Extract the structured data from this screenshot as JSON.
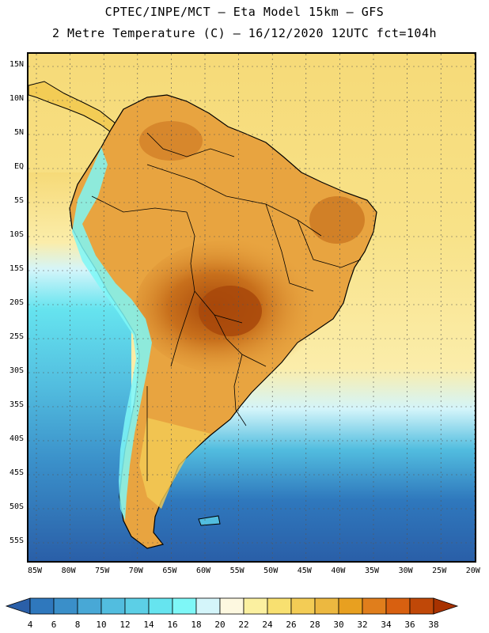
{
  "header": {
    "line1": "CPTEC/INPE/MCT —  Eta Model 15km — GFS",
    "line2": "2 Metre Temperature (C) — 16/12/2020 12UTC fct=104h"
  },
  "axes": {
    "latitude_labels": [
      "15N",
      "10N",
      "5N",
      "EQ",
      "5S",
      "10S",
      "15S",
      "20S",
      "25S",
      "30S",
      "35S",
      "40S",
      "45S",
      "50S",
      "55S"
    ],
    "longitude_labels": [
      "85W",
      "80W",
      "75W",
      "70W",
      "65W",
      "60W",
      "55W",
      "50W",
      "45W",
      "40W",
      "35W",
      "30W",
      "25W",
      "20W"
    ]
  },
  "legend": {
    "units": "C",
    "labels": [
      "4",
      "6",
      "8",
      "10",
      "12",
      "14",
      "16",
      "18",
      "20",
      "22",
      "24",
      "26",
      "28",
      "30",
      "32",
      "34",
      "36",
      "38"
    ],
    "colors": [
      "#2a5fa8",
      "#2f78bd",
      "#3a8fc9",
      "#48a8d6",
      "#52bddf",
      "#5ccfe6",
      "#66e4ef",
      "#7ef7f7",
      "#d4f5fa",
      "#fdf8e0",
      "#fbf0a0",
      "#f8e070",
      "#f3cc55",
      "#ecb840",
      "#e8a020",
      "#e07e1c",
      "#d86010",
      "#c04808",
      "#a83200"
    ]
  },
  "map": {
    "ocean_colors": {
      "tropical": "#f6da78",
      "subtropical": "#fbedaa",
      "mid": "#d4f5fa",
      "cool": "#52bddf",
      "cold": "#2f78bd",
      "coldest": "#2a5fa8"
    },
    "land_colors": {
      "amazon": "#e8a440",
      "hot_core": "#c8701c",
      "hottest": "#a8480a",
      "andes": "#7ef7f7",
      "patagonia": "#f3cc55"
    }
  }
}
